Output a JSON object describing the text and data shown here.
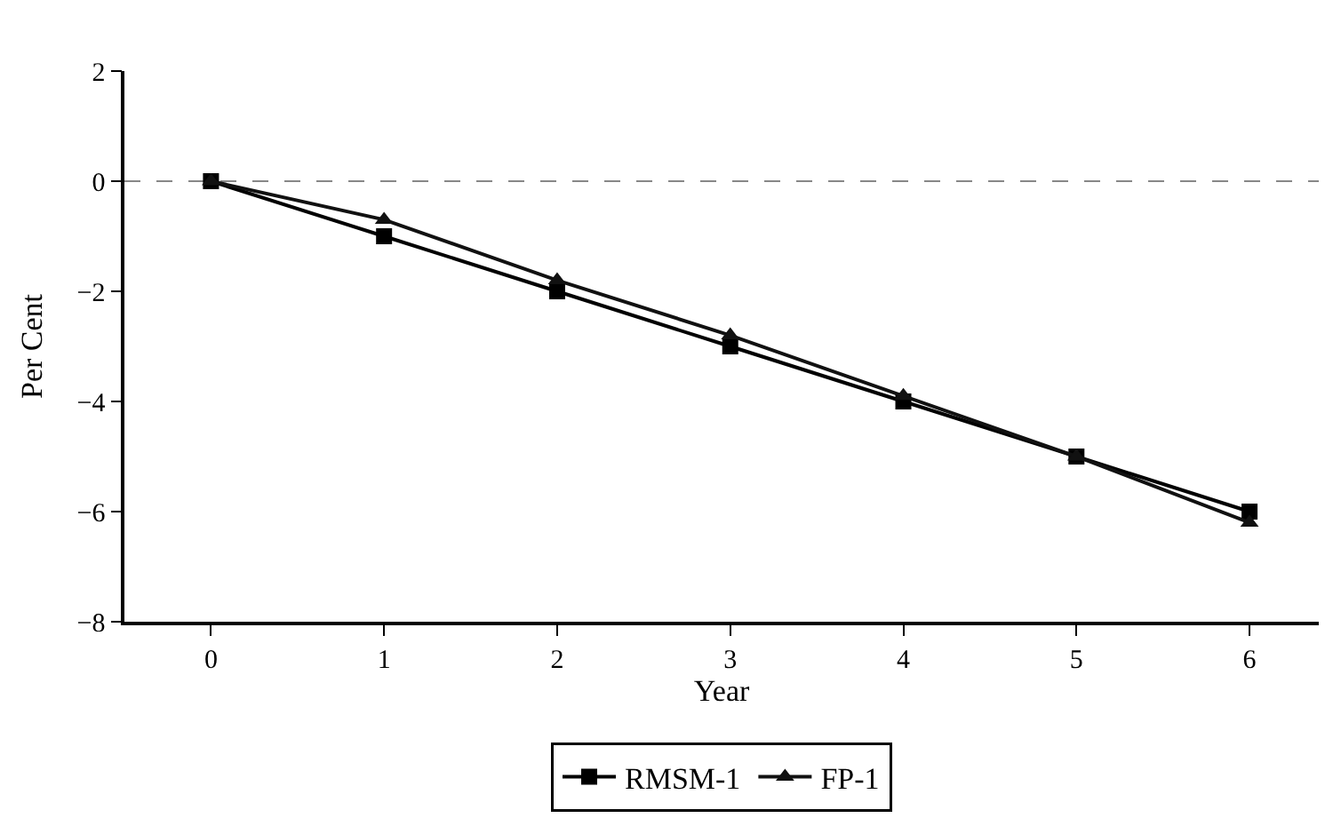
{
  "chart_data": {
    "type": "line",
    "xlabel": "Year",
    "ylabel": "Per Cent",
    "x": [
      0,
      1,
      2,
      3,
      4,
      5,
      6
    ],
    "series": [
      {
        "name": "RMSM-1",
        "color": "#000000",
        "marker": "square",
        "values": [
          0,
          -1,
          -2,
          -3,
          -4,
          -5,
          -6
        ]
      },
      {
        "name": "FP-1",
        "color": "#111111",
        "marker": "triangle",
        "values": [
          0,
          -0.7,
          -1.8,
          -2.8,
          -3.9,
          -5,
          -6.2
        ]
      }
    ],
    "xlim": [
      -0.5,
      6.4
    ],
    "xticks": [
      0,
      1,
      2,
      3,
      4,
      5,
      6
    ],
    "ylim": [
      -8,
      2
    ],
    "yticks": [
      -8,
      -6,
      -4,
      -2,
      0,
      2
    ],
    "ref_lines": [
      {
        "axis": "y",
        "value": 0,
        "color": "#888888",
        "line_style": "dashed"
      }
    ],
    "grid": false,
    "legend": "bottom",
    "line_style": "solid"
  }
}
